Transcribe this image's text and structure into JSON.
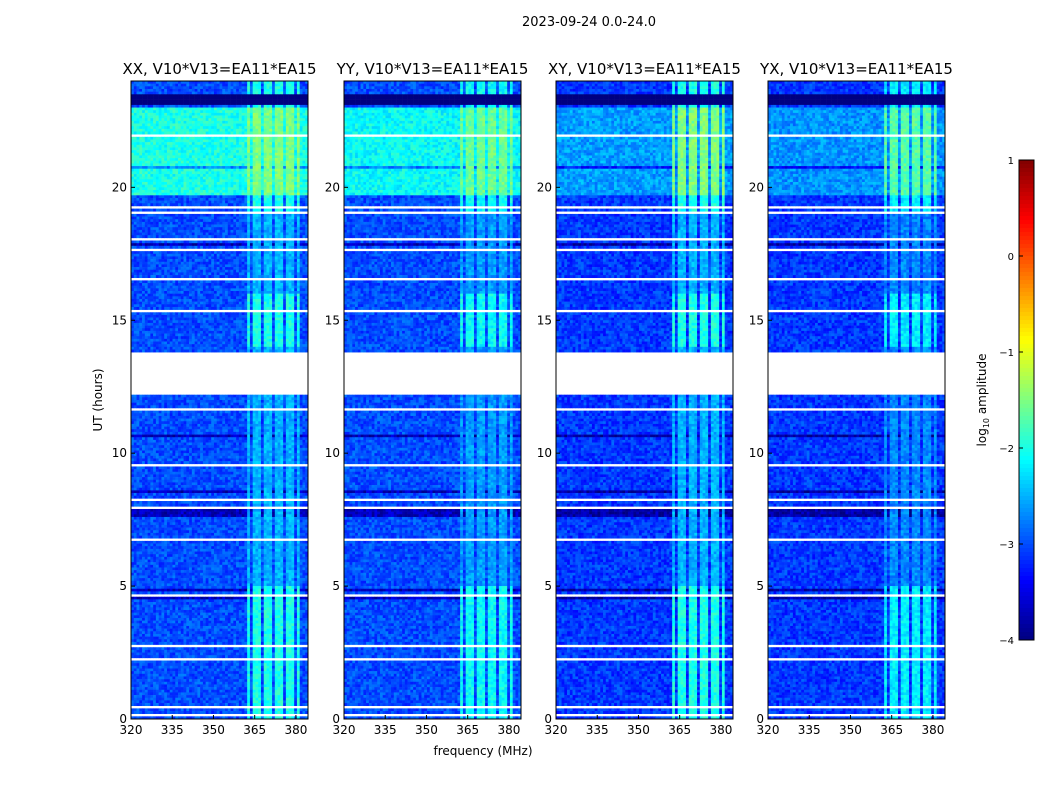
{
  "chart_data": {
    "type": "heatmap",
    "title": "2023-09-24 0.0-24.0",
    "xlabel": "frequency (MHz)",
    "ylabel": "UT (hours)",
    "xlim": [
      320,
      384.4
    ],
    "ylim": [
      0,
      24
    ],
    "xticks": [
      320,
      335,
      350,
      365,
      380
    ],
    "yticks": [
      0,
      5,
      10,
      15,
      20
    ],
    "panels": [
      {
        "title": "XX, V10*V13=EA11*EA15",
        "base": -3.0,
        "day_boost": 1.0,
        "rfi_level": -1.3
      },
      {
        "title": "YY, V10*V13=EA11*EA15",
        "base": -3.0,
        "day_boost": 0.9,
        "rfi_level": -1.4
      },
      {
        "title": "XY, V10*V13=EA11*EA15",
        "base": -3.1,
        "day_boost": 0.5,
        "rfi_level": -1.3
      },
      {
        "title": "YX, V10*V13=EA11*EA15",
        "base": -3.1,
        "day_boost": 0.45,
        "rfi_level": -1.5
      }
    ],
    "features": {
      "rfi_band_mhz": [
        362,
        381
      ],
      "bright_period_hours": [
        19.7,
        23.0
      ],
      "flagged_gap_hours": [
        12.2,
        13.7
      ],
      "zero_band_hours": [
        23.1,
        23.5
      ]
    },
    "colorbar": {
      "label": "log",
      "label_sub": "10",
      "label_rest": " amplitude",
      "range": [
        -4,
        1
      ],
      "ticks": [
        "1",
        "0",
        "−1",
        "−2",
        "−3",
        "−4"
      ],
      "tick_values": [
        1,
        0,
        -1,
        -2,
        -3,
        -4
      ],
      "colormap": "jet"
    }
  }
}
